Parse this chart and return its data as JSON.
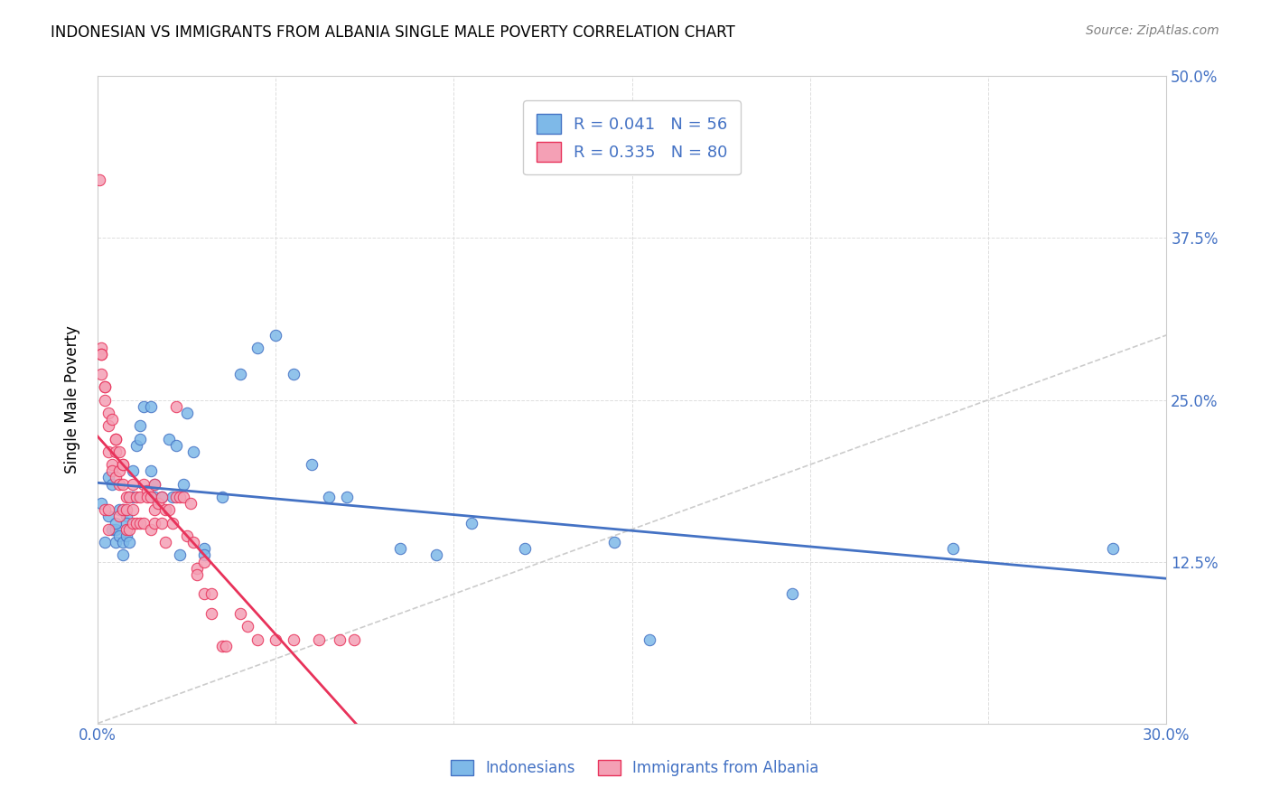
{
  "title": "INDONESIAN VS IMMIGRANTS FROM ALBANIA SINGLE MALE POVERTY CORRELATION CHART",
  "source": "Source: ZipAtlas.com",
  "ylabel_label": "Single Male Poverty",
  "xlim": [
    0.0,
    0.3
  ],
  "ylim": [
    0.0,
    0.5
  ],
  "r_indonesian": 0.041,
  "n_indonesian": 56,
  "r_albania": 0.335,
  "n_albania": 80,
  "color_indonesian": "#7EB9E8",
  "color_albania": "#F4A0B5",
  "color_line_indonesian": "#4472C4",
  "color_line_albania": "#E8325A",
  "color_diagonal": "#CCCCCC",
  "color_axis_text": "#4472C4",
  "background_color": "#FFFFFF",
  "legend_label_indonesian": "Indonesians",
  "legend_label_albania": "Immigrants from Albania",
  "indonesian_x": [
    0.001,
    0.002,
    0.003,
    0.003,
    0.004,
    0.004,
    0.005,
    0.005,
    0.005,
    0.006,
    0.006,
    0.007,
    0.007,
    0.007,
    0.008,
    0.008,
    0.008,
    0.009,
    0.009,
    0.01,
    0.01,
    0.011,
    0.012,
    0.012,
    0.013,
    0.015,
    0.015,
    0.016,
    0.016,
    0.018,
    0.02,
    0.021,
    0.022,
    0.023,
    0.024,
    0.025,
    0.027,
    0.03,
    0.03,
    0.035,
    0.04,
    0.045,
    0.05,
    0.055,
    0.06,
    0.065,
    0.07,
    0.085,
    0.095,
    0.105,
    0.12,
    0.145,
    0.155,
    0.195,
    0.24,
    0.285
  ],
  "indonesian_y": [
    0.17,
    0.14,
    0.19,
    0.16,
    0.15,
    0.185,
    0.15,
    0.14,
    0.155,
    0.165,
    0.145,
    0.14,
    0.165,
    0.13,
    0.16,
    0.155,
    0.145,
    0.175,
    0.14,
    0.195,
    0.175,
    0.215,
    0.23,
    0.22,
    0.245,
    0.195,
    0.245,
    0.185,
    0.175,
    0.175,
    0.22,
    0.175,
    0.215,
    0.13,
    0.185,
    0.24,
    0.21,
    0.135,
    0.13,
    0.175,
    0.27,
    0.29,
    0.3,
    0.27,
    0.2,
    0.175,
    0.175,
    0.135,
    0.13,
    0.155,
    0.135,
    0.14,
    0.065,
    0.1,
    0.135,
    0.135
  ],
  "albania_x": [
    0.0005,
    0.001,
    0.001,
    0.001,
    0.001,
    0.002,
    0.002,
    0.002,
    0.002,
    0.003,
    0.003,
    0.003,
    0.003,
    0.003,
    0.004,
    0.004,
    0.004,
    0.005,
    0.005,
    0.005,
    0.005,
    0.006,
    0.006,
    0.006,
    0.006,
    0.007,
    0.007,
    0.007,
    0.007,
    0.008,
    0.008,
    0.008,
    0.009,
    0.009,
    0.01,
    0.01,
    0.01,
    0.011,
    0.011,
    0.012,
    0.012,
    0.013,
    0.013,
    0.014,
    0.014,
    0.015,
    0.015,
    0.016,
    0.016,
    0.016,
    0.017,
    0.018,
    0.018,
    0.019,
    0.019,
    0.02,
    0.021,
    0.022,
    0.022,
    0.023,
    0.024,
    0.025,
    0.026,
    0.027,
    0.028,
    0.028,
    0.03,
    0.03,
    0.032,
    0.032,
    0.035,
    0.036,
    0.04,
    0.042,
    0.045,
    0.05,
    0.055,
    0.062,
    0.068,
    0.072
  ],
  "albania_y": [
    0.42,
    0.29,
    0.285,
    0.285,
    0.27,
    0.26,
    0.26,
    0.25,
    0.165,
    0.24,
    0.23,
    0.21,
    0.165,
    0.15,
    0.235,
    0.2,
    0.195,
    0.22,
    0.22,
    0.21,
    0.19,
    0.21,
    0.195,
    0.185,
    0.16,
    0.2,
    0.2,
    0.185,
    0.165,
    0.175,
    0.165,
    0.15,
    0.175,
    0.15,
    0.185,
    0.165,
    0.155,
    0.175,
    0.155,
    0.175,
    0.155,
    0.185,
    0.155,
    0.18,
    0.175,
    0.175,
    0.15,
    0.185,
    0.165,
    0.155,
    0.17,
    0.175,
    0.155,
    0.165,
    0.14,
    0.165,
    0.155,
    0.245,
    0.175,
    0.175,
    0.175,
    0.145,
    0.17,
    0.14,
    0.12,
    0.115,
    0.125,
    0.1,
    0.1,
    0.085,
    0.06,
    0.06,
    0.085,
    0.075,
    0.065,
    0.065,
    0.065,
    0.065,
    0.065,
    0.065
  ]
}
